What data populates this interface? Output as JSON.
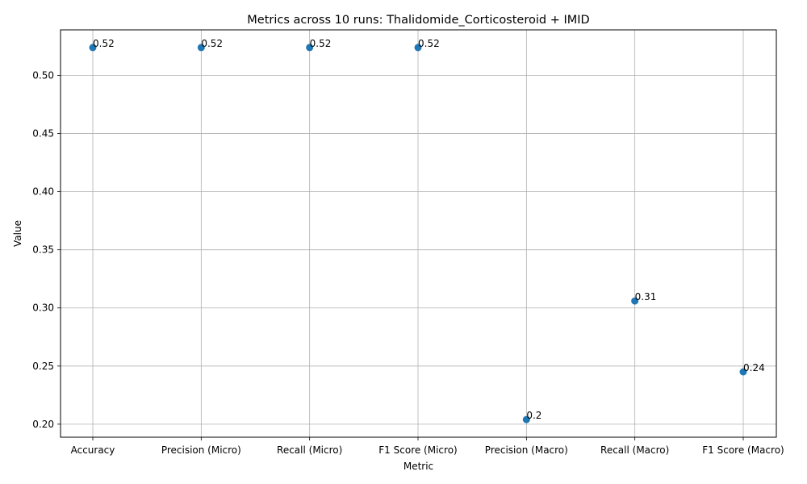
{
  "chart_data": {
    "type": "scatter",
    "title": "Metrics across 10 runs: Thalidomide_Corticosteroid + IMID",
    "xlabel": "Metric",
    "ylabel": "Value",
    "categories": [
      "Accuracy",
      "Precision (Micro)",
      "Recall (Micro)",
      "F1 Score (Micro)",
      "Precision (Macro)",
      "Recall (Macro)",
      "F1 Score (Macro)"
    ],
    "values": [
      0.524,
      0.524,
      0.524,
      0.524,
      0.204,
      0.306,
      0.245
    ],
    "data_labels": [
      "0.52",
      "0.52",
      "0.52",
      "0.52",
      "0.2",
      "0.31",
      "0.24"
    ],
    "y_ticks": [
      0.2,
      0.25,
      0.3,
      0.35,
      0.4,
      0.45,
      0.5
    ],
    "y_tick_labels": [
      "0.20",
      "0.25",
      "0.30",
      "0.35",
      "0.40",
      "0.45",
      "0.50"
    ],
    "ylim": [
      0.1888,
      0.5392
    ],
    "grid": true,
    "marker_color": "#1f77b4"
  }
}
